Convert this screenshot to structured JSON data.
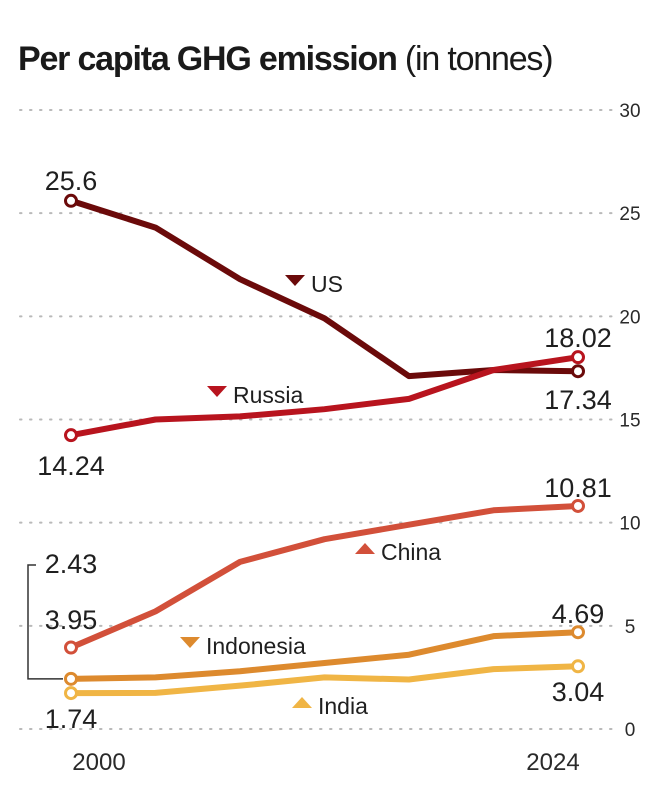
{
  "chart_data": {
    "type": "line",
    "title": "Per capita GHG emission",
    "title_unit": "(in tonnes)",
    "xlabel": "",
    "ylabel": "",
    "x": [
      2000,
      2004,
      2008,
      2012,
      2016,
      2020,
      2024
    ],
    "x_tick_labels": [
      "2000",
      "2024"
    ],
    "ylim": [
      0,
      30
    ],
    "y_ticks": [
      0,
      5,
      10,
      15,
      20,
      25,
      30
    ],
    "y_tick_labels": [
      "0",
      "5",
      "10",
      "15",
      "20",
      "25",
      "30"
    ],
    "y_axis_side": "right",
    "grid": "horizontal-dotted",
    "series": [
      {
        "name": "US",
        "color": "#6b0a0a",
        "marker": "down",
        "values": [
          25.6,
          24.3,
          21.8,
          19.9,
          17.1,
          17.4,
          17.34
        ],
        "start_label": "25.6",
        "end_label": "17.34"
      },
      {
        "name": "Russia",
        "color": "#b8141e",
        "marker": "down",
        "values": [
          14.24,
          15.0,
          15.15,
          15.5,
          16.0,
          17.4,
          18.02
        ],
        "start_label": "14.24",
        "end_label": "18.02"
      },
      {
        "name": "China",
        "color": "#d2503a",
        "marker": "up",
        "values": [
          3.95,
          5.7,
          8.1,
          9.2,
          9.9,
          10.6,
          10.81
        ],
        "start_label": "3.95",
        "end_label": "10.81"
      },
      {
        "name": "Indonesia",
        "color": "#dd8a2e",
        "marker": "down",
        "values": [
          2.43,
          2.5,
          2.8,
          3.2,
          3.6,
          4.5,
          4.69
        ],
        "start_label": "2.43",
        "end_label": "4.69"
      },
      {
        "name": "India",
        "color": "#f0b545",
        "marker": "up",
        "values": [
          1.74,
          1.75,
          2.1,
          2.5,
          2.4,
          2.9,
          3.04
        ],
        "start_label": "1.74",
        "end_label": "3.04"
      }
    ]
  }
}
